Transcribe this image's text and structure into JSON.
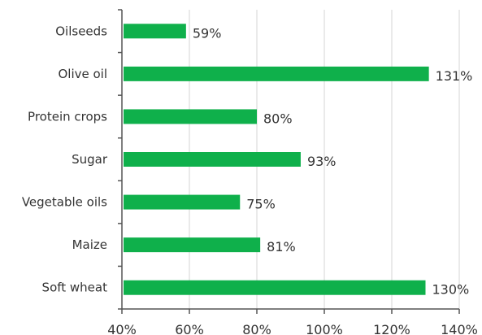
{
  "chart_data": {
    "type": "bar",
    "orientation": "horizontal",
    "categories": [
      "Oilseeds",
      "Olive oil",
      "Protein crops",
      "Sugar",
      "Vegetable oils",
      "Maize",
      "Soft wheat"
    ],
    "values": [
      59,
      131,
      80,
      93,
      75,
      81,
      130
    ],
    "value_labels": [
      "59%",
      "131%",
      "80%",
      "93%",
      "75%",
      "81%",
      "130%"
    ],
    "xlim": [
      40,
      140
    ],
    "x_ticks": [
      40,
      60,
      80,
      100,
      120,
      140
    ],
    "x_tick_labels": [
      "40%",
      "60%",
      "80%",
      "100%",
      "120%",
      "140%"
    ],
    "title": "",
    "xlabel": "",
    "ylabel": "",
    "grid": "vertical",
    "legend": "none",
    "colors": {
      "bar": "#0fb04b",
      "grid": "#d4d4d4",
      "axis": "#555555",
      "text": "#333333"
    }
  }
}
